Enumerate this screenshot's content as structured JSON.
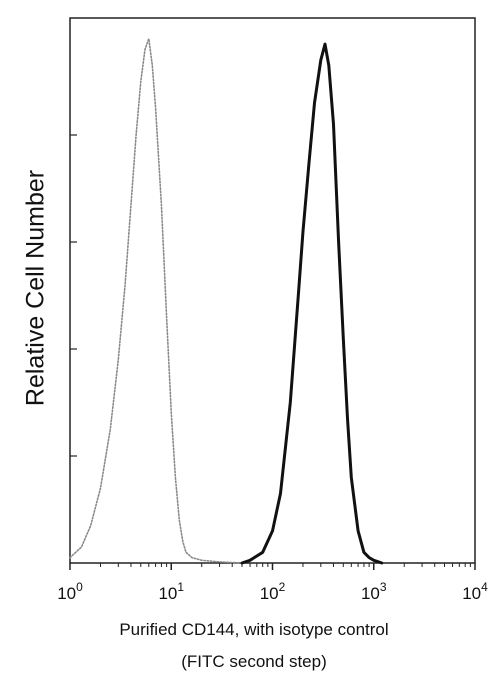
{
  "chart_data": {
    "type": "line",
    "title": "",
    "ylabel": "Relative Cell Number",
    "xlabel_line1": "Purified CD144, with isotype control",
    "xlabel_line2": "(FITC second step)",
    "x_scale": "log",
    "xlim": [
      1,
      10000
    ],
    "ylim": [
      0,
      1
    ],
    "x_ticks": [
      {
        "value": 1,
        "base": "10",
        "exp": "0"
      },
      {
        "value": 10,
        "base": "10",
        "exp": "1"
      },
      {
        "value": 100,
        "base": "10",
        "exp": "2"
      },
      {
        "value": 1000,
        "base": "10",
        "exp": "3"
      },
      {
        "value": 10000,
        "base": "10",
        "exp": "4"
      }
    ],
    "y_ticks": [
      0.2,
      0.4,
      0.6,
      0.8
    ],
    "grid": false,
    "legend": "none",
    "series": [
      {
        "style": "dotted-gray",
        "color": "#8a8a8a",
        "x": [
          1,
          1.3,
          1.6,
          2,
          2.5,
          3,
          3.5,
          4,
          4.5,
          5,
          5.5,
          6,
          6.5,
          7,
          8,
          9,
          10,
          11,
          12,
          13,
          14,
          16,
          20,
          30,
          50
        ],
        "y": [
          0.01,
          0.03,
          0.07,
          0.14,
          0.25,
          0.38,
          0.52,
          0.67,
          0.8,
          0.9,
          0.96,
          0.98,
          0.93,
          0.85,
          0.67,
          0.46,
          0.28,
          0.16,
          0.08,
          0.04,
          0.02,
          0.01,
          0.005,
          0.002,
          0
        ]
      },
      {
        "style": "solid-black",
        "color": "#111111",
        "x": [
          50,
          60,
          80,
          100,
          120,
          150,
          180,
          200,
          230,
          260,
          300,
          330,
          360,
          400,
          450,
          500,
          550,
          600,
          700,
          800,
          900,
          1000,
          1200
        ],
        "y": [
          0,
          0.005,
          0.02,
          0.06,
          0.13,
          0.3,
          0.5,
          0.62,
          0.75,
          0.86,
          0.94,
          0.97,
          0.93,
          0.82,
          0.6,
          0.42,
          0.27,
          0.16,
          0.06,
          0.02,
          0.01,
          0.005,
          0
        ]
      }
    ]
  }
}
